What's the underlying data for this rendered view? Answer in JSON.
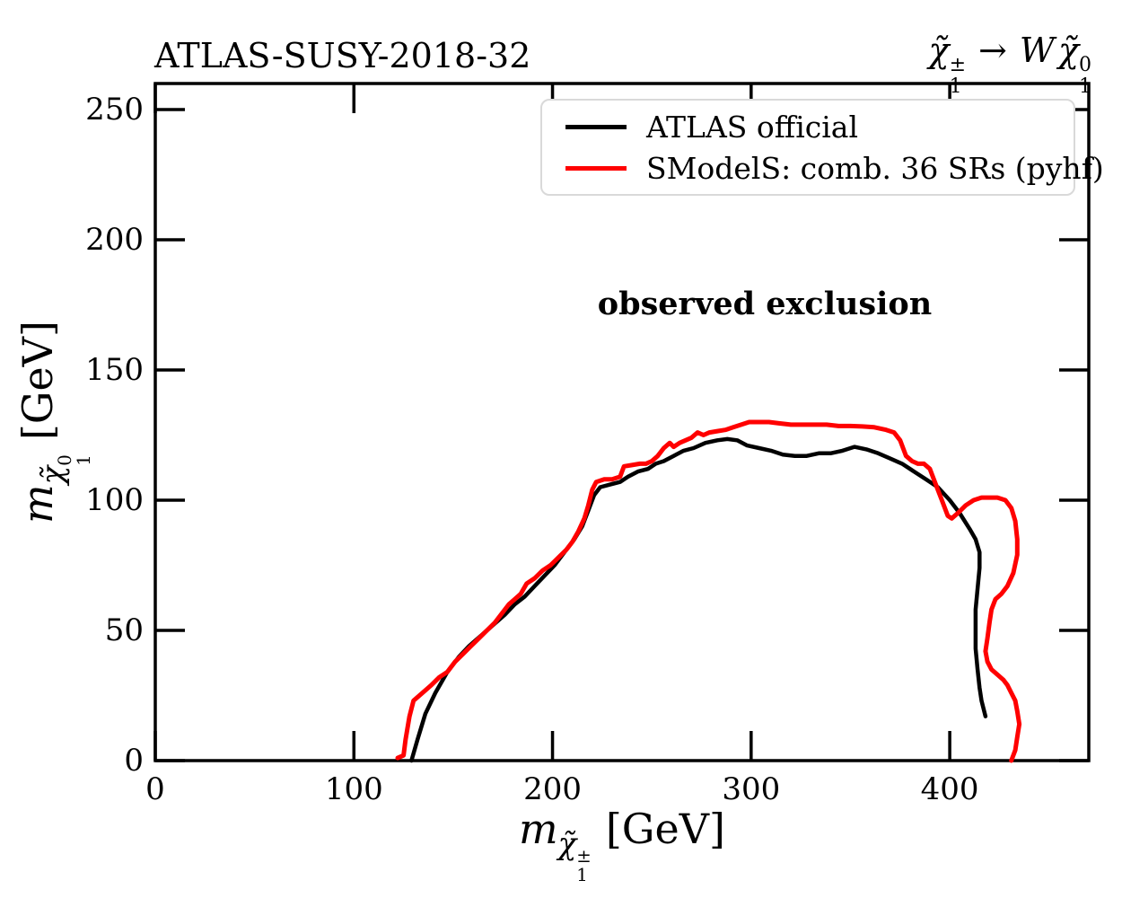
{
  "titles": {
    "left": "ATLAS-SUSY-2018-32",
    "right_plain": "χ̃₁± → W χ̃₁⁰"
  },
  "particles": {
    "chargino": {
      "base": "χ̃",
      "sup": "±",
      "sub": "1"
    },
    "neutralino": {
      "base": "χ̃",
      "sup": "0",
      "sub": "1"
    },
    "W": "W",
    "arrow": "→"
  },
  "axes": {
    "mass_symbol": "m",
    "unit": "[GeV]",
    "xlabel_plain": "m_χ̃₁± [GeV]",
    "ylabel_plain": "m_χ̃₁⁰ [GeV]"
  },
  "annotation": {
    "text": "observed exclusion"
  },
  "legend": {
    "entries": [
      "ATLAS official",
      "SModelS: comb. 36 SRs (pyhf)"
    ],
    "border_color": "#d9d9d9"
  },
  "colors": {
    "atlas": "#000000",
    "smodels": "#ff0000",
    "frame": "#000000"
  },
  "chart_data": {
    "type": "line",
    "title": "ATLAS-SUSY-2018-32",
    "subtitle": "χ̃₁± → W χ̃₁⁰",
    "xlabel": "m_χ̃₁± [GeV]",
    "ylabel": "m_χ̃₁⁰ [GeV]",
    "xlim": [
      0,
      470
    ],
    "ylim": [
      0,
      260
    ],
    "x_ticks": [
      0,
      100,
      200,
      300,
      400
    ],
    "y_ticks": [
      0,
      50,
      100,
      150,
      200,
      250
    ],
    "grid": false,
    "legend_position": "upper right",
    "annotations": [
      {
        "text": "observed exclusion",
        "x": 307,
        "y": 175,
        "bold": true
      }
    ],
    "series": [
      {
        "name": "ATLAS official",
        "color": "#000000",
        "points": [
          [
            129,
            0
          ],
          [
            132,
            8
          ],
          [
            136,
            18
          ],
          [
            141,
            26
          ],
          [
            147,
            34
          ],
          [
            153,
            40
          ],
          [
            158,
            44
          ],
          [
            164,
            48
          ],
          [
            170,
            52
          ],
          [
            176,
            56
          ],
          [
            181,
            60
          ],
          [
            186,
            63
          ],
          [
            191,
            67
          ],
          [
            196,
            71
          ],
          [
            201,
            75
          ],
          [
            206,
            80
          ],
          [
            211,
            85
          ],
          [
            215,
            90
          ],
          [
            218,
            96
          ],
          [
            221,
            102
          ],
          [
            224,
            105
          ],
          [
            229,
            106
          ],
          [
            234,
            107
          ],
          [
            238,
            109
          ],
          [
            243,
            111
          ],
          [
            248,
            112
          ],
          [
            252,
            114
          ],
          [
            256,
            115
          ],
          [
            261,
            117
          ],
          [
            266,
            119
          ],
          [
            271,
            120
          ],
          [
            277,
            122
          ],
          [
            283,
            123
          ],
          [
            288,
            123.5
          ],
          [
            293,
            123
          ],
          [
            298,
            121
          ],
          [
            304,
            120
          ],
          [
            310,
            119
          ],
          [
            316,
            117.5
          ],
          [
            322,
            117
          ],
          [
            328,
            117
          ],
          [
            334,
            118
          ],
          [
            340,
            118
          ],
          [
            346,
            119
          ],
          [
            352,
            120.5
          ],
          [
            358,
            119.5
          ],
          [
            364,
            118
          ],
          [
            370,
            116
          ],
          [
            376,
            114
          ],
          [
            382,
            111
          ],
          [
            388,
            108
          ],
          [
            394,
            105
          ],
          [
            400,
            100
          ],
          [
            405,
            95
          ],
          [
            410,
            89
          ],
          [
            413,
            85
          ],
          [
            415,
            80
          ],
          [
            415,
            74
          ],
          [
            414,
            66
          ],
          [
            413,
            58
          ],
          [
            413,
            50
          ],
          [
            413,
            43
          ],
          [
            414,
            35
          ],
          [
            415,
            28
          ],
          [
            416,
            23
          ],
          [
            418,
            17
          ]
        ]
      },
      {
        "name": "SModelS: comb. 36 SRs (pyhf)",
        "color": "#ff0000",
        "points": [
          [
            122,
            1
          ],
          [
            125,
            2
          ],
          [
            126,
            8
          ],
          [
            128,
            17
          ],
          [
            130,
            23
          ],
          [
            133,
            25
          ],
          [
            136,
            27
          ],
          [
            139,
            29
          ],
          [
            143,
            32
          ],
          [
            147,
            34
          ],
          [
            151,
            38
          ],
          [
            155,
            41
          ],
          [
            159,
            44
          ],
          [
            163,
            47
          ],
          [
            167,
            50
          ],
          [
            171,
            53
          ],
          [
            175,
            57
          ],
          [
            178,
            60
          ],
          [
            181,
            62
          ],
          [
            184,
            64
          ],
          [
            187,
            68
          ],
          [
            191,
            70
          ],
          [
            195,
            73
          ],
          [
            199,
            75
          ],
          [
            203,
            78
          ],
          [
            207,
            81
          ],
          [
            210,
            84
          ],
          [
            213,
            88
          ],
          [
            216,
            93
          ],
          [
            218,
            98
          ],
          [
            220,
            104
          ],
          [
            222,
            107
          ],
          [
            226,
            108
          ],
          [
            230,
            108
          ],
          [
            234,
            109
          ],
          [
            236,
            113
          ],
          [
            240,
            113.5
          ],
          [
            244,
            114
          ],
          [
            247,
            114
          ],
          [
            250,
            115
          ],
          [
            253,
            117
          ],
          [
            256,
            120
          ],
          [
            259,
            122
          ],
          [
            261,
            120.5
          ],
          [
            264,
            122
          ],
          [
            267,
            123
          ],
          [
            270,
            124
          ],
          [
            273,
            126
          ],
          [
            276,
            125
          ],
          [
            279,
            126
          ],
          [
            283,
            126.5
          ],
          [
            287,
            127
          ],
          [
            291,
            128
          ],
          [
            295,
            129
          ],
          [
            299,
            130
          ],
          [
            304,
            130
          ],
          [
            309,
            130
          ],
          [
            314,
            129.5
          ],
          [
            320,
            129
          ],
          [
            326,
            129
          ],
          [
            332,
            129
          ],
          [
            338,
            129
          ],
          [
            344,
            128.5
          ],
          [
            350,
            128.5
          ],
          [
            356,
            128.3
          ],
          [
            362,
            128
          ],
          [
            368,
            127
          ],
          [
            372,
            126
          ],
          [
            375,
            123
          ],
          [
            378,
            117
          ],
          [
            381,
            115
          ],
          [
            384,
            114
          ],
          [
            387,
            114
          ],
          [
            390,
            112
          ],
          [
            393,
            106
          ],
          [
            396,
            100
          ],
          [
            399,
            94
          ],
          [
            401,
            93
          ],
          [
            404,
            95
          ],
          [
            408,
            98
          ],
          [
            412,
            100
          ],
          [
            416,
            101
          ],
          [
            420,
            101
          ],
          [
            424,
            101
          ],
          [
            428,
            100
          ],
          [
            431,
            97
          ],
          [
            433,
            92
          ],
          [
            434,
            85
          ],
          [
            434,
            79
          ],
          [
            432,
            72
          ],
          [
            429,
            67
          ],
          [
            426,
            64
          ],
          [
            423,
            62
          ],
          [
            421,
            58
          ],
          [
            420,
            53
          ],
          [
            419,
            47
          ],
          [
            418,
            42
          ],
          [
            419,
            38
          ],
          [
            421,
            35
          ],
          [
            424,
            33
          ],
          [
            427,
            31
          ],
          [
            429,
            29
          ],
          [
            431,
            26
          ],
          [
            433,
            23
          ],
          [
            434,
            19
          ],
          [
            435,
            14
          ],
          [
            434,
            9
          ],
          [
            433,
            4
          ],
          [
            431,
            0
          ]
        ]
      }
    ]
  }
}
